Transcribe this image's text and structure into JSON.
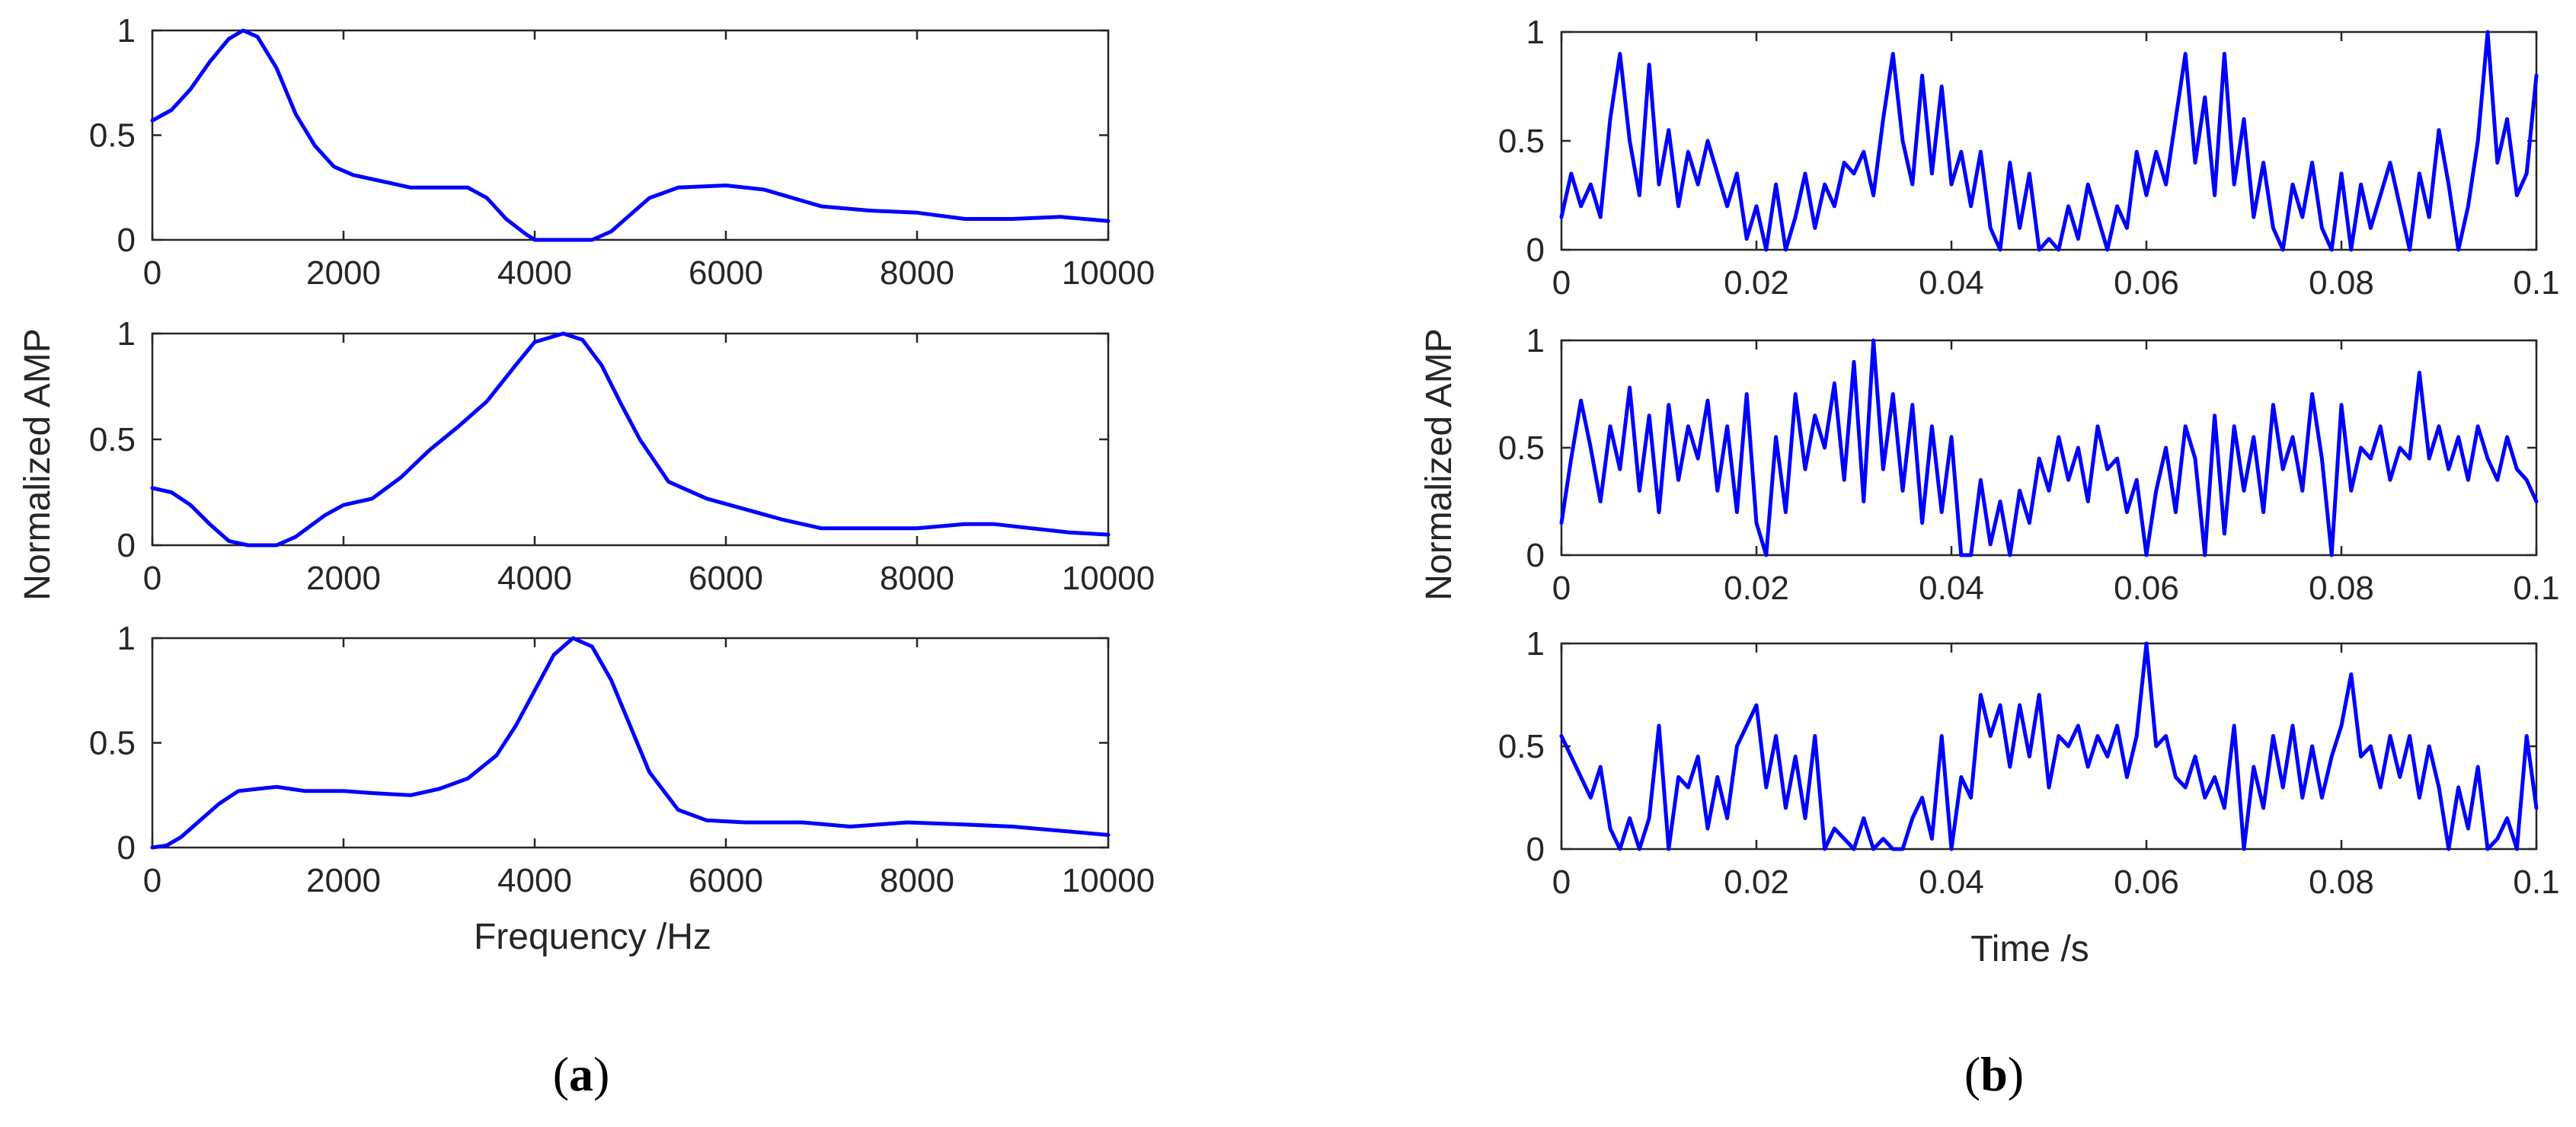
{
  "colors": {
    "line": "#0000ff",
    "axis": "#262626"
  },
  "figure": {
    "panel_a_open": "(",
    "panel_a_letter": "a",
    "panel_a_close": ")",
    "panel_b_open": "(",
    "panel_b_letter": "b",
    "panel_b_close": ")"
  },
  "chart_data": [
    {
      "type": "line",
      "group": "a",
      "ylabel": "Normalized AMP",
      "xlabel": "",
      "xlim": [
        0,
        10000
      ],
      "ylim": [
        0,
        1
      ],
      "xticks": [
        0,
        2000,
        4000,
        6000,
        8000,
        10000
      ],
      "xtick_labels": [
        "0",
        "2000",
        "4000",
        "6000",
        "8000",
        "10000"
      ],
      "yticks": [
        0,
        0.5,
        1
      ],
      "ytick_labels": [
        "0",
        "0.5",
        "1"
      ],
      "grid": false,
      "series": [
        {
          "x": [
            0,
            200,
            400,
            600,
            800,
            950,
            1100,
            1300,
            1500,
            1700,
            1900,
            2100,
            2400,
            2700,
            3000,
            3300,
            3500,
            3700,
            3900,
            4000,
            4300,
            4600,
            4800,
            5000,
            5200,
            5500,
            6000,
            6400,
            7000,
            7500,
            8000,
            8500,
            9000,
            9500,
            10000
          ],
          "y": [
            0.57,
            0.62,
            0.72,
            0.85,
            0.96,
            1.0,
            0.97,
            0.82,
            0.6,
            0.45,
            0.35,
            0.31,
            0.28,
            0.25,
            0.25,
            0.25,
            0.2,
            0.1,
            0.03,
            0.0,
            0.0,
            0.0,
            0.04,
            0.12,
            0.2,
            0.25,
            0.26,
            0.24,
            0.16,
            0.14,
            0.13,
            0.1,
            0.1,
            0.11,
            0.09
          ]
        }
      ]
    },
    {
      "type": "line",
      "group": "a",
      "xlim": [
        0,
        10000
      ],
      "ylim": [
        0,
        1
      ],
      "xticks": [
        0,
        2000,
        4000,
        6000,
        8000,
        10000
      ],
      "xtick_labels": [
        "0",
        "2000",
        "4000",
        "6000",
        "8000",
        "10000"
      ],
      "yticks": [
        0,
        0.5,
        1
      ],
      "ytick_labels": [
        "0",
        "0.5",
        "1"
      ],
      "grid": false,
      "series": [
        {
          "x": [
            0,
            200,
            400,
            600,
            800,
            1000,
            1300,
            1500,
            1800,
            2000,
            2300,
            2600,
            2900,
            3200,
            3500,
            3800,
            4000,
            4300,
            4500,
            4700,
            4900,
            5100,
            5400,
            5800,
            6200,
            6600,
            7000,
            7500,
            8000,
            8500,
            8800,
            9200,
            9600,
            10000
          ],
          "y": [
            0.27,
            0.25,
            0.19,
            0.1,
            0.02,
            0.0,
            0.0,
            0.04,
            0.14,
            0.19,
            0.22,
            0.32,
            0.45,
            0.56,
            0.68,
            0.85,
            0.96,
            1.0,
            0.97,
            0.85,
            0.67,
            0.5,
            0.3,
            0.22,
            0.17,
            0.12,
            0.08,
            0.08,
            0.08,
            0.1,
            0.1,
            0.08,
            0.06,
            0.05
          ]
        }
      ]
    },
    {
      "type": "line",
      "group": "a",
      "xlabel": "Frequency /Hz",
      "xlim": [
        0,
        10000
      ],
      "ylim": [
        0,
        1
      ],
      "xticks": [
        0,
        2000,
        4000,
        6000,
        8000,
        10000
      ],
      "xtick_labels": [
        "0",
        "2000",
        "4000",
        "6000",
        "8000",
        "10000"
      ],
      "yticks": [
        0,
        0.5,
        1
      ],
      "ytick_labels": [
        "0",
        "0.5",
        "1"
      ],
      "grid": false,
      "series": [
        {
          "x": [
            0,
            150,
            300,
            500,
            700,
            900,
            1100,
            1300,
            1600,
            2000,
            2300,
            2700,
            3000,
            3300,
            3600,
            3800,
            4000,
            4200,
            4400,
            4600,
            4800,
            5000,
            5200,
            5500,
            5800,
            6200,
            6800,
            7300,
            7900,
            8500,
            9000,
            9500,
            10000
          ],
          "y": [
            0.0,
            0.01,
            0.05,
            0.13,
            0.21,
            0.27,
            0.28,
            0.29,
            0.27,
            0.27,
            0.26,
            0.25,
            0.28,
            0.33,
            0.44,
            0.58,
            0.75,
            0.92,
            1.0,
            0.96,
            0.8,
            0.58,
            0.36,
            0.18,
            0.13,
            0.12,
            0.12,
            0.1,
            0.12,
            0.11,
            0.1,
            0.08,
            0.06
          ]
        }
      ]
    },
    {
      "type": "line",
      "group": "b",
      "ylabel": "Normalized AMP",
      "xlim": [
        0,
        0.1
      ],
      "ylim": [
        0,
        1
      ],
      "xticks": [
        0,
        0.02,
        0.04,
        0.06,
        0.08,
        0.1
      ],
      "xtick_labels": [
        "0",
        "0.02",
        "0.04",
        "0.06",
        "0.08",
        "0.1"
      ],
      "yticks": [
        0,
        0.5,
        1
      ],
      "ytick_labels": [
        "0",
        "0.5",
        "1"
      ],
      "grid": false,
      "series": [
        {
          "x": [
            0,
            0.001,
            0.002,
            0.003,
            0.004,
            0.005,
            0.006,
            0.007,
            0.008,
            0.009,
            0.01,
            0.011,
            0.012,
            0.013,
            0.014,
            0.015,
            0.016,
            0.017,
            0.018,
            0.019,
            0.02,
            0.021,
            0.022,
            0.023,
            0.024,
            0.025,
            0.026,
            0.027,
            0.028,
            0.029,
            0.03,
            0.031,
            0.032,
            0.033,
            0.034,
            0.035,
            0.036,
            0.037,
            0.038,
            0.039,
            0.04,
            0.041,
            0.042,
            0.043,
            0.044,
            0.045,
            0.046,
            0.047,
            0.048,
            0.049,
            0.05,
            0.051,
            0.052,
            0.053,
            0.054,
            0.055,
            0.056,
            0.057,
            0.058,
            0.059,
            0.06,
            0.061,
            0.062,
            0.063,
            0.064,
            0.065,
            0.066,
            0.067,
            0.068,
            0.069,
            0.07,
            0.071,
            0.072,
            0.073,
            0.074,
            0.075,
            0.076,
            0.077,
            0.078,
            0.079,
            0.08,
            0.081,
            0.082,
            0.083,
            0.084,
            0.085,
            0.086,
            0.087,
            0.088,
            0.089,
            0.09,
            0.091,
            0.092,
            0.093,
            0.094,
            0.095,
            0.096,
            0.097,
            0.098,
            0.099,
            0.1
          ],
          "y": [
            0.15,
            0.35,
            0.2,
            0.3,
            0.15,
            0.6,
            0.9,
            0.5,
            0.25,
            0.85,
            0.3,
            0.55,
            0.2,
            0.45,
            0.3,
            0.5,
            0.35,
            0.2,
            0.35,
            0.05,
            0.2,
            0.0,
            0.3,
            0.0,
            0.15,
            0.35,
            0.1,
            0.3,
            0.2,
            0.4,
            0.35,
            0.45,
            0.25,
            0.6,
            0.9,
            0.5,
            0.3,
            0.8,
            0.35,
            0.75,
            0.3,
            0.45,
            0.2,
            0.45,
            0.1,
            0.0,
            0.4,
            0.1,
            0.35,
            0.0,
            0.05,
            0.0,
            0.2,
            0.05,
            0.3,
            0.15,
            0.0,
            0.2,
            0.1,
            0.45,
            0.25,
            0.45,
            0.3,
            0.6,
            0.9,
            0.4,
            0.7,
            0.25,
            0.9,
            0.3,
            0.6,
            0.15,
            0.4,
            0.1,
            0.0,
            0.3,
            0.15,
            0.4,
            0.1,
            0.0,
            0.35,
            0.0,
            0.3,
            0.1,
            0.25,
            0.4,
            0.2,
            0.0,
            0.35,
            0.15,
            0.55,
            0.3,
            0.0,
            0.2,
            0.5,
            1.0,
            0.4,
            0.6,
            0.25,
            0.35,
            0.8
          ]
        }
      ]
    },
    {
      "type": "line",
      "group": "b",
      "xlim": [
        0,
        0.1
      ],
      "ylim": [
        0,
        1
      ],
      "xticks": [
        0,
        0.02,
        0.04,
        0.06,
        0.08,
        0.1
      ],
      "xtick_labels": [
        "0",
        "0.02",
        "0.04",
        "0.06",
        "0.08",
        "0.1"
      ],
      "yticks": [
        0,
        0.5,
        1
      ],
      "ytick_labels": [
        "0",
        "0.5",
        "1"
      ],
      "grid": false,
      "series": [
        {
          "x": [
            0,
            0.001,
            0.002,
            0.003,
            0.004,
            0.005,
            0.006,
            0.007,
            0.008,
            0.009,
            0.01,
            0.011,
            0.012,
            0.013,
            0.014,
            0.015,
            0.016,
            0.017,
            0.018,
            0.019,
            0.02,
            0.021,
            0.022,
            0.023,
            0.024,
            0.025,
            0.026,
            0.027,
            0.028,
            0.029,
            0.03,
            0.031,
            0.032,
            0.033,
            0.034,
            0.035,
            0.036,
            0.037,
            0.038,
            0.039,
            0.04,
            0.041,
            0.042,
            0.043,
            0.044,
            0.045,
            0.046,
            0.047,
            0.048,
            0.049,
            0.05,
            0.051,
            0.052,
            0.053,
            0.054,
            0.055,
            0.056,
            0.057,
            0.058,
            0.059,
            0.06,
            0.061,
            0.062,
            0.063,
            0.064,
            0.065,
            0.066,
            0.067,
            0.068,
            0.069,
            0.07,
            0.071,
            0.072,
            0.073,
            0.074,
            0.075,
            0.076,
            0.077,
            0.078,
            0.079,
            0.08,
            0.081,
            0.082,
            0.083,
            0.084,
            0.085,
            0.086,
            0.087,
            0.088,
            0.089,
            0.09,
            0.091,
            0.092,
            0.093,
            0.094,
            0.095,
            0.096,
            0.097,
            0.098,
            0.099,
            0.1
          ],
          "y": [
            0.15,
            0.45,
            0.72,
            0.5,
            0.25,
            0.6,
            0.4,
            0.78,
            0.3,
            0.65,
            0.2,
            0.7,
            0.35,
            0.6,
            0.45,
            0.72,
            0.3,
            0.6,
            0.2,
            0.75,
            0.15,
            0.0,
            0.55,
            0.2,
            0.75,
            0.4,
            0.65,
            0.5,
            0.8,
            0.35,
            0.9,
            0.25,
            1.0,
            0.4,
            0.75,
            0.3,
            0.7,
            0.15,
            0.6,
            0.2,
            0.55,
            0.0,
            0.0,
            0.35,
            0.05,
            0.25,
            0.0,
            0.3,
            0.15,
            0.45,
            0.3,
            0.55,
            0.35,
            0.5,
            0.25,
            0.6,
            0.4,
            0.45,
            0.2,
            0.35,
            0.0,
            0.3,
            0.5,
            0.2,
            0.6,
            0.45,
            0.0,
            0.65,
            0.1,
            0.6,
            0.3,
            0.55,
            0.2,
            0.7,
            0.4,
            0.55,
            0.3,
            0.75,
            0.45,
            0.0,
            0.7,
            0.3,
            0.5,
            0.45,
            0.6,
            0.35,
            0.5,
            0.45,
            0.85,
            0.45,
            0.6,
            0.4,
            0.55,
            0.35,
            0.6,
            0.45,
            0.35,
            0.55,
            0.4,
            0.35,
            0.25
          ]
        }
      ]
    },
    {
      "type": "line",
      "group": "b",
      "xlabel": "Time /s",
      "xlim": [
        0,
        0.1
      ],
      "ylim": [
        0,
        1
      ],
      "xticks": [
        0,
        0.02,
        0.04,
        0.06,
        0.08,
        0.1
      ],
      "xtick_labels": [
        "0",
        "0.02",
        "0.04",
        "0.06",
        "0.08",
        "0.1"
      ],
      "yticks": [
        0,
        0.5,
        1
      ],
      "ytick_labels": [
        "0",
        "0.5",
        "1"
      ],
      "grid": false,
      "series": [
        {
          "x": [
            0,
            0.001,
            0.002,
            0.003,
            0.004,
            0.005,
            0.006,
            0.007,
            0.008,
            0.009,
            0.01,
            0.011,
            0.012,
            0.013,
            0.014,
            0.015,
            0.016,
            0.017,
            0.018,
            0.019,
            0.02,
            0.021,
            0.022,
            0.023,
            0.024,
            0.025,
            0.026,
            0.027,
            0.028,
            0.029,
            0.03,
            0.031,
            0.032,
            0.033,
            0.034,
            0.035,
            0.036,
            0.037,
            0.038,
            0.039,
            0.04,
            0.041,
            0.042,
            0.043,
            0.044,
            0.045,
            0.046,
            0.047,
            0.048,
            0.049,
            0.05,
            0.051,
            0.052,
            0.053,
            0.054,
            0.055,
            0.056,
            0.057,
            0.058,
            0.059,
            0.06,
            0.061,
            0.062,
            0.063,
            0.064,
            0.065,
            0.066,
            0.067,
            0.068,
            0.069,
            0.07,
            0.071,
            0.072,
            0.073,
            0.074,
            0.075,
            0.076,
            0.077,
            0.078,
            0.079,
            0.08,
            0.081,
            0.082,
            0.083,
            0.084,
            0.085,
            0.086,
            0.087,
            0.088,
            0.089,
            0.09,
            0.091,
            0.092,
            0.093,
            0.094,
            0.095,
            0.096,
            0.097,
            0.098,
            0.099,
            0.1
          ],
          "y": [
            0.55,
            0.45,
            0.35,
            0.25,
            0.4,
            0.1,
            0.0,
            0.15,
            0.0,
            0.15,
            0.6,
            0.0,
            0.35,
            0.3,
            0.45,
            0.1,
            0.35,
            0.15,
            0.5,
            0.6,
            0.7,
            0.3,
            0.55,
            0.2,
            0.45,
            0.15,
            0.55,
            0.0,
            0.1,
            0.05,
            0.0,
            0.15,
            0.0,
            0.05,
            0.0,
            0.0,
            0.15,
            0.25,
            0.05,
            0.55,
            0.0,
            0.35,
            0.25,
            0.75,
            0.55,
            0.7,
            0.4,
            0.7,
            0.45,
            0.75,
            0.3,
            0.55,
            0.5,
            0.6,
            0.4,
            0.55,
            0.45,
            0.6,
            0.35,
            0.55,
            1.0,
            0.5,
            0.55,
            0.35,
            0.3,
            0.45,
            0.25,
            0.35,
            0.2,
            0.6,
            0.0,
            0.4,
            0.2,
            0.55,
            0.3,
            0.6,
            0.25,
            0.5,
            0.25,
            0.45,
            0.6,
            0.85,
            0.45,
            0.5,
            0.3,
            0.55,
            0.35,
            0.55,
            0.25,
            0.5,
            0.3,
            0.0,
            0.3,
            0.1,
            0.4,
            0.0,
            0.05,
            0.15,
            0.0,
            0.55,
            0.2
          ]
        }
      ]
    }
  ]
}
